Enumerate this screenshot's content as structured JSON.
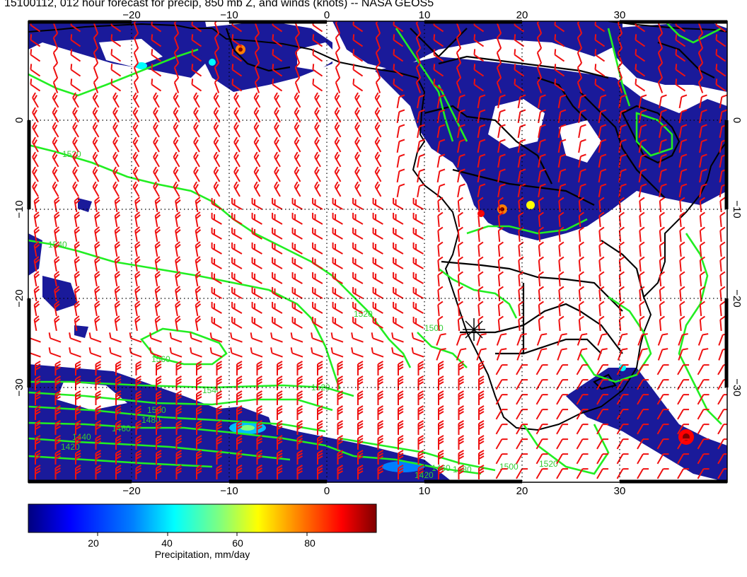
{
  "header": {
    "title": "15100112, 012 hour forecast for precip, 850 mb Z, and winds (knots) -- NASA GEOS5"
  },
  "map": {
    "lon_ticks": [
      "−20",
      "−10",
      "0",
      "10",
      "20",
      "30"
    ],
    "lat_ticks": [
      "0",
      "−10",
      "−20",
      "−30"
    ],
    "contour_labels": [
      "1520",
      "1540",
      "1560",
      "1540",
      "1520",
      "1500",
      "1480",
      "1460",
      "1440",
      "1420",
      "1500",
      "1520",
      "1500",
      "1520",
      "1480",
      "1460",
      "1420"
    ],
    "colors": {
      "land": "#000000",
      "contour": "#22ee22",
      "wind_barb": "#ee1111",
      "precip_low": "#1a1a9a"
    }
  },
  "colorbar": {
    "ticks": [
      "20",
      "40",
      "60",
      "80"
    ],
    "label": "Precipitation, mm/day",
    "range": [
      0,
      100
    ],
    "colors": [
      "#00007f",
      "#0000ff",
      "#007fff",
      "#00ffff",
      "#7fff7f",
      "#ffff00",
      "#ff7f00",
      "#ff0000",
      "#7f0000"
    ]
  }
}
